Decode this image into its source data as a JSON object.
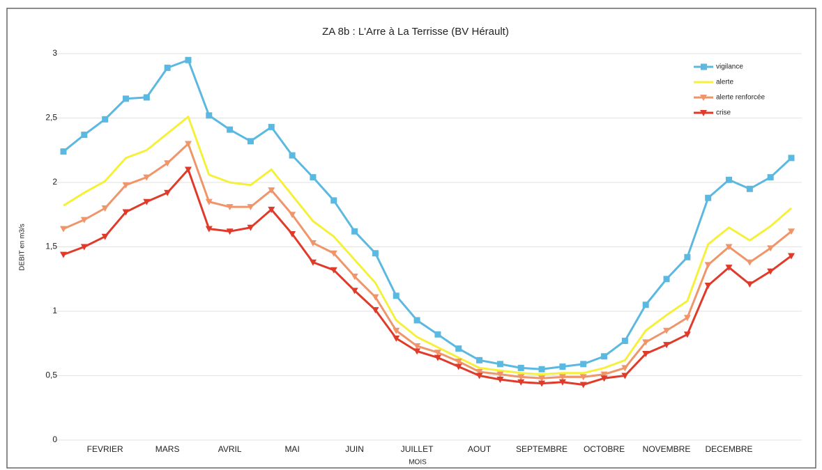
{
  "chart_data": {
    "type": "line",
    "title": "ZA 8b : L'Arre à La Terrisse (BV Hérault)",
    "y_label": "DEBIT en m3/s",
    "x_label": "MOIS",
    "categories": [
      null,
      null,
      "FEVRIER",
      null,
      null,
      "MARS",
      null,
      null,
      "AVRIL",
      null,
      null,
      "MAI",
      null,
      null,
      "JUIN",
      null,
      null,
      "JUILLET",
      null,
      null,
      "AOUT",
      null,
      null,
      "SEPTEMBRE",
      null,
      null,
      "OCTOBRE",
      null,
      null,
      "NOVEMBRE",
      null,
      null,
      "DECEMBRE",
      null,
      null,
      null
    ],
    "series": [
      {
        "name": "vigilance",
        "color": "#5bb8e0",
        "marker": "square",
        "values": [
          2.24,
          2.37,
          2.49,
          2.65,
          2.66,
          2.89,
          2.95,
          2.52,
          2.41,
          2.32,
          2.43,
          2.21,
          2.04,
          1.86,
          1.62,
          1.45,
          1.12,
          0.93,
          0.82,
          0.71,
          0.62,
          0.59,
          0.56,
          0.55,
          0.57,
          0.59,
          0.65,
          0.77,
          1.05,
          1.25,
          1.42,
          1.88,
          2.02,
          1.95,
          2.04,
          2.19
        ]
      },
      {
        "name": "alerte",
        "color": "#f5f03a",
        "marker": "none",
        "values": [
          1.82,
          1.92,
          2.01,
          2.19,
          2.25,
          2.38,
          2.51,
          2.06,
          2.0,
          1.98,
          2.1,
          1.9,
          1.7,
          1.58,
          1.4,
          1.22,
          0.93,
          0.8,
          0.72,
          0.64,
          0.56,
          0.54,
          0.52,
          0.51,
          0.52,
          0.52,
          0.56,
          0.62,
          0.85,
          0.97,
          1.08,
          1.52,
          1.65,
          1.55,
          1.66,
          1.8
        ]
      },
      {
        "name": "alerte renforcée",
        "color": "#f0956a",
        "marker": "triangle",
        "values": [
          1.64,
          1.71,
          1.8,
          1.98,
          2.04,
          2.15,
          2.3,
          1.85,
          1.81,
          1.81,
          1.94,
          1.75,
          1.53,
          1.45,
          1.27,
          1.11,
          0.85,
          0.73,
          0.68,
          0.61,
          0.53,
          0.51,
          0.49,
          0.48,
          0.49,
          0.49,
          0.51,
          0.56,
          0.76,
          0.85,
          0.95,
          1.36,
          1.5,
          1.38,
          1.49,
          1.62
        ]
      },
      {
        "name": "crise",
        "color": "#e03a2a",
        "marker": "triangle",
        "values": [
          1.44,
          1.5,
          1.58,
          1.77,
          1.85,
          1.92,
          2.1,
          1.64,
          1.62,
          1.65,
          1.79,
          1.6,
          1.38,
          1.32,
          1.16,
          1.01,
          0.79,
          0.69,
          0.64,
          0.57,
          0.5,
          0.47,
          0.45,
          0.44,
          0.45,
          0.43,
          0.48,
          0.5,
          0.67,
          0.74,
          0.82,
          1.2,
          1.34,
          1.21,
          1.31,
          1.43
        ]
      }
    ],
    "ylim": [
      0,
      3
    ],
    "yticks": [
      0,
      {
        "value": 0.5,
        "label": "0,5"
      },
      1,
      {
        "value": 1.5,
        "label": "1,5"
      },
      2,
      {
        "value": 2.5,
        "label": "2,5"
      },
      3
    ],
    "grid": true,
    "legend": "top-right"
  }
}
